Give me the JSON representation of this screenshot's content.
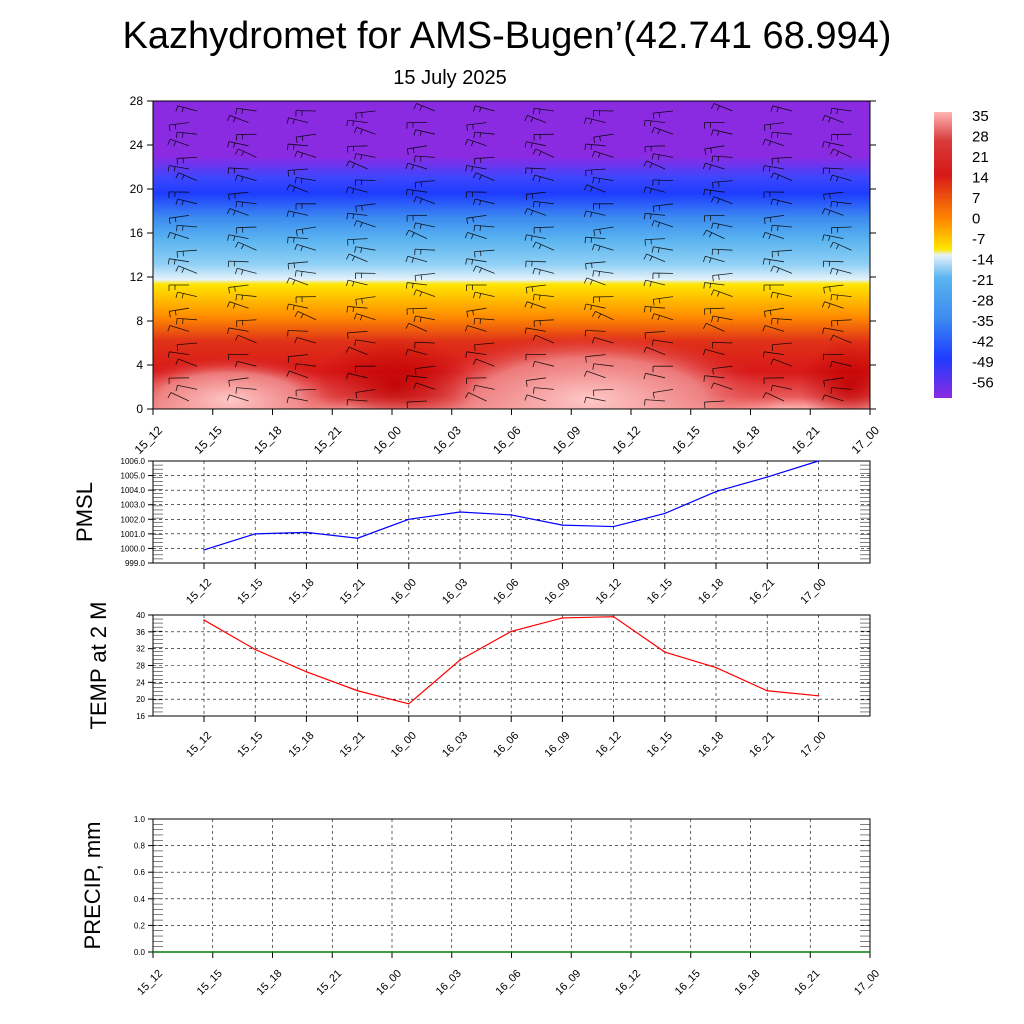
{
  "header": {
    "title": "Kazhydromet for AMS-Bugen’(42.741 68.994)",
    "subtitle": "15 July 2025"
  },
  "chart_data": [
    {
      "type": "heatmap",
      "name": "height-time temperature cross-section with wind barbs",
      "x_tick_labels": [
        "15_12",
        "15_15",
        "15_18",
        "15_21",
        "16_00",
        "16_03",
        "16_06",
        "16_09",
        "16_12",
        "16_15",
        "16_18",
        "16_21",
        "17_00"
      ],
      "y_ticks": [
        0,
        4,
        8,
        12,
        16,
        20,
        24,
        28
      ],
      "ylim": [
        0,
        28
      ],
      "colorbar_labels": [
        "35",
        "28",
        "21",
        "14",
        "7",
        "0",
        "-7",
        "-14",
        "-21",
        "-28",
        "-35",
        "-42",
        "-49",
        "-56"
      ],
      "colorbar_range": [
        -63,
        42
      ],
      "colors": {
        "cold": "#8a2be2",
        "blue": "#1e3cff",
        "cyan": "#5ab4f0",
        "pale": "#e6f2fa",
        "yellow": "#ffe600",
        "orange": "#ff8c00",
        "red": "#d81818",
        "hot": "#ffb4b4"
      }
    },
    {
      "type": "line",
      "ylabel": "PMSL",
      "x_tick_labels": [
        "15_12",
        "15_15",
        "15_18",
        "15_21",
        "16_00",
        "16_03",
        "16_06",
        "16_09",
        "16_12",
        "16_15",
        "16_18",
        "16_21",
        "17_00"
      ],
      "y_tick_labels": [
        "999.0",
        "1000.0",
        "1001.0",
        "1002.0",
        "1003.0",
        "1004.0",
        "1005.0",
        "1006.0"
      ],
      "ylim": [
        999,
        1006
      ],
      "series": [
        {
          "color": "#0000ff",
          "values": [
            999.9,
            1001.0,
            1001.1,
            1000.7,
            1002.0,
            1002.5,
            1002.3,
            1001.6,
            1001.5,
            1002.4,
            1003.9,
            1004.9,
            1006.0
          ]
        }
      ],
      "grid": true
    },
    {
      "type": "line",
      "ylabel": "TEMP at 2 M",
      "x_tick_labels": [
        "15_12",
        "15_15",
        "15_18",
        "15_21",
        "16_00",
        "16_03",
        "16_06",
        "16_09",
        "16_12",
        "16_15",
        "16_18",
        "16_21",
        "17_00"
      ],
      "y_tick_labels": [
        "16",
        "20",
        "24",
        "28",
        "32",
        "36",
        "40"
      ],
      "ylim": [
        16,
        40
      ],
      "series": [
        {
          "color": "#ff0000",
          "values": [
            38.8,
            31.8,
            26.5,
            22.0,
            18.9,
            29.3,
            36.1,
            39.3,
            39.6,
            31.2,
            27.5,
            22.0,
            20.8
          ]
        }
      ],
      "grid": true
    },
    {
      "type": "line",
      "ylabel": "PRECIP, mm",
      "x_tick_labels": [
        "15_12",
        "15_15",
        "15_18",
        "15_21",
        "16_00",
        "16_03",
        "16_06",
        "16_09",
        "16_12",
        "16_15",
        "16_18",
        "16_21",
        "17_00"
      ],
      "y_tick_labels": [
        "0.0",
        "0.2",
        "0.4",
        "0.6",
        "0.8",
        "1.0"
      ],
      "ylim": [
        0,
        1
      ],
      "series": [
        {
          "color": "#008000",
          "values": [
            0,
            0,
            0,
            0,
            0,
            0,
            0,
            0,
            0,
            0,
            0,
            0,
            0
          ]
        }
      ],
      "grid": true
    }
  ]
}
